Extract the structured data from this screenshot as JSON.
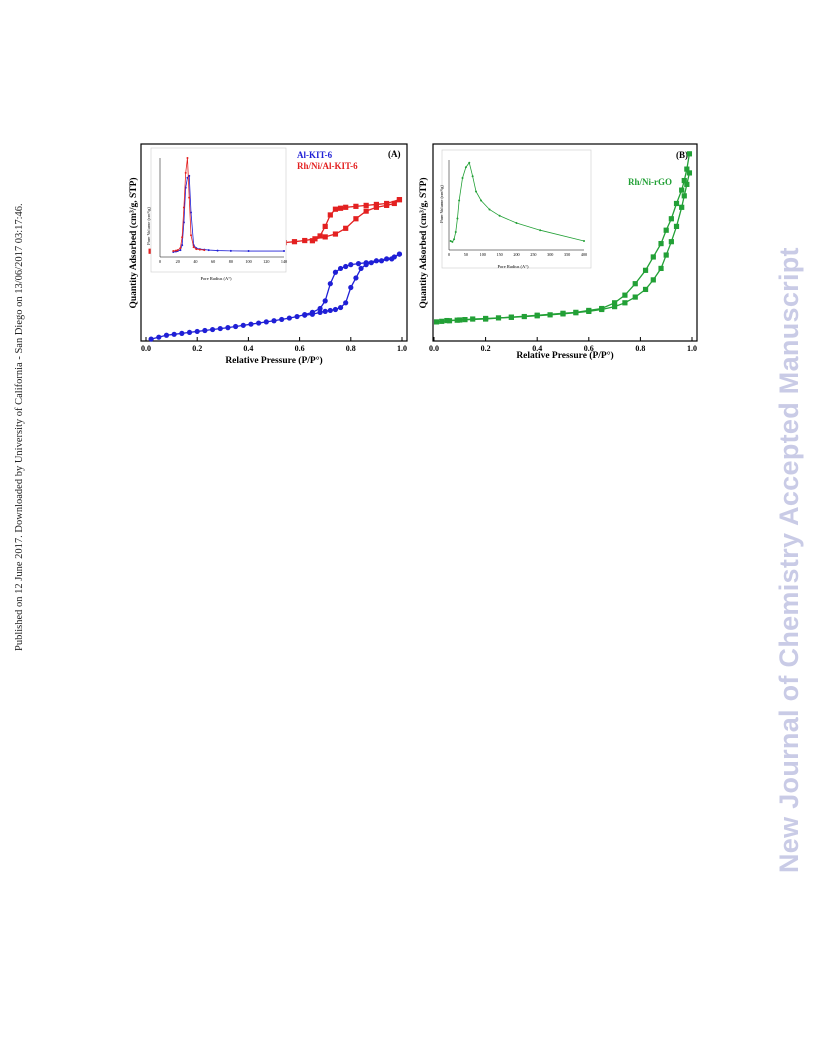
{
  "side_note": "Published on 12 June 2017. Downloaded by University of California - San Diego on 13/06/2017 03:17:46.",
  "watermark": "New Journal of Chemistry Accepted Manuscript",
  "chart_data": [
    {
      "type": "line",
      "panel_label": "(A)",
      "xlabel": "Relative Pressure (P/P°)",
      "ylabel": "Quantity Adsorbed (cm³/g, STP)",
      "xlim": [
        0.0,
        1.0
      ],
      "ylim": [
        0,
        100
      ],
      "y_ticks_labeled": false,
      "xticks": [
        "0.0",
        "0.2",
        "0.4",
        "0.6",
        "0.8",
        "1.0"
      ],
      "grid": false,
      "legend_position": "top-right",
      "series": [
        {
          "name": "Al-KIT-6",
          "color": "#1f1fd6",
          "marker": "circle",
          "x": [
            0.02,
            0.05,
            0.08,
            0.11,
            0.14,
            0.17,
            0.2,
            0.23,
            0.26,
            0.29,
            0.32,
            0.35,
            0.38,
            0.41,
            0.44,
            0.47,
            0.5,
            0.53,
            0.56,
            0.59,
            0.62,
            0.65,
            0.68,
            0.7,
            0.72,
            0.74,
            0.76,
            0.78,
            0.8,
            0.83,
            0.86,
            0.9,
            0.94,
            0.97,
            0.99
          ],
          "y": [
            1,
            2,
            3,
            3.5,
            4,
            4.5,
            5,
            5.5,
            6,
            6.5,
            7,
            7.6,
            8.2,
            8.8,
            9.4,
            10,
            10.6,
            11.3,
            12,
            12.8,
            13.8,
            15,
            17,
            21,
            30,
            36,
            38,
            39,
            40,
            40.5,
            41,
            42,
            43,
            44,
            45.5
          ]
        },
        {
          "name": "Al-KIT-6 desorption",
          "color": "#1f1fd6",
          "marker": "circle",
          "x": [
            0.99,
            0.96,
            0.92,
            0.88,
            0.86,
            0.84,
            0.82,
            0.8,
            0.78,
            0.76,
            0.74,
            0.72,
            0.7,
            0.68,
            0.65,
            0.62
          ],
          "y": [
            45.5,
            43,
            42,
            41,
            40,
            38,
            33,
            28,
            20,
            17.5,
            16.5,
            16,
            15.5,
            15,
            14,
            13.5
          ]
        },
        {
          "name": "Rh/Ni/Al-KIT-6",
          "color": "#e32020",
          "marker": "square",
          "x": [
            0.02,
            0.06,
            0.1,
            0.14,
            0.18,
            0.22,
            0.26,
            0.3,
            0.34,
            0.38,
            0.42,
            0.46,
            0.5,
            0.54,
            0.58,
            0.62,
            0.66,
            0.7,
            0.74,
            0.78,
            0.82,
            0.86,
            0.9,
            0.94,
            0.97,
            0.99
          ],
          "y": [
            47,
            47.3,
            47.6,
            47.9,
            48.2,
            48.5,
            48.8,
            49.1,
            49.5,
            49.9,
            50.3,
            50.7,
            51.1,
            51.5,
            52,
            52.6,
            53.5,
            54.5,
            56,
            59,
            64,
            68,
            70,
            71,
            72,
            74
          ]
        },
        {
          "name": "Rh/Ni/Al-KIT-6 desorption",
          "color": "#e32020",
          "marker": "square",
          "x": [
            0.99,
            0.94,
            0.9,
            0.86,
            0.82,
            0.78,
            0.76,
            0.74,
            0.72,
            0.7,
            0.68,
            0.65
          ],
          "y": [
            74,
            72,
            71.5,
            71,
            70.5,
            70,
            69.5,
            69,
            66,
            60,
            55,
            52.5
          ]
        }
      ],
      "inset": {
        "type": "line",
        "xlabel": "Pore Radius (A°)",
        "ylabel": "Pore Volume (cm³/g)",
        "xlim": [
          0,
          140
        ],
        "xticks": [
          "0",
          "20",
          "40",
          "60",
          "80",
          "100",
          "120",
          "140"
        ],
        "series": [
          {
            "name": "Al-KIT-6",
            "color": "#1f1fd6",
            "x": [
              15,
              18,
              20,
              23,
              25,
              27,
              29,
              31,
              33,
              35,
              38,
              41,
              45,
              50,
              55,
              65,
              80,
              100,
              140
            ],
            "y": [
              5,
              5.5,
              6,
              7,
              12,
              35,
              70,
              80,
              82,
              45,
              12,
              9,
              8,
              7.5,
              7,
              6.5,
              6.2,
              6,
              6
            ]
          },
          {
            "name": "Rh/Ni/Al-KIT-6",
            "color": "#e32020",
            "x": [
              15,
              18,
              20,
              23,
              25,
              27,
              29,
              31,
              33,
              35,
              38,
              41,
              45,
              50
            ],
            "y": [
              6,
              6.5,
              7,
              9,
              20,
              50,
              85,
              100,
              60,
              22,
              10,
              8,
              7.5,
              7
            ]
          }
        ]
      }
    },
    {
      "type": "line",
      "panel_label": "(B)",
      "xlabel": "Relative Pressure (P/P°)",
      "ylabel": "Quantity Adsorbed (cm³/g, STP)",
      "xlim": [
        0.0,
        1.0
      ],
      "ylim": [
        0,
        100
      ],
      "y_ticks_labeled": false,
      "xticks": [
        "0.0",
        "0.2",
        "0.4",
        "0.6",
        "0.8",
        "1.0"
      ],
      "grid": false,
      "legend_position": "top-right",
      "series": [
        {
          "name": "Rh/Ni-rGO",
          "color": "#22a036",
          "marker": "square",
          "x": [
            0.01,
            0.03,
            0.06,
            0.09,
            0.12,
            0.15,
            0.2,
            0.25,
            0.3,
            0.35,
            0.4,
            0.45,
            0.5,
            0.55,
            0.6,
            0.65,
            0.7,
            0.74,
            0.78,
            0.82,
            0.85,
            0.88,
            0.9,
            0.92,
            0.94,
            0.96,
            0.97,
            0.98,
            0.99
          ],
          "y": [
            10,
            10.3,
            10.6,
            10.9,
            11.2,
            11.5,
            11.8,
            12.1,
            12.4,
            12.8,
            13.2,
            13.7,
            14.2,
            14.8,
            15.5,
            16.5,
            18,
            20,
            23,
            27,
            32,
            38,
            45,
            52,
            60,
            70,
            76,
            82,
            88
          ]
        },
        {
          "name": "Rh/Ni-rGO desorption",
          "color": "#22a036",
          "marker": "square",
          "x": [
            0.99,
            0.98,
            0.97,
            0.96,
            0.94,
            0.92,
            0.9,
            0.88,
            0.85,
            0.82,
            0.78,
            0.74,
            0.7,
            0.65,
            0.6,
            0.55,
            0.5,
            0.4,
            0.3,
            0.2,
            0.1,
            0.05
          ],
          "y": [
            98,
            90,
            84,
            79,
            72,
            64,
            58,
            51,
            44,
            37,
            30,
            24,
            20,
            17,
            16,
            15,
            14.5,
            13.5,
            12.5,
            11.5,
            11,
            10.7
          ]
        }
      ],
      "inset": {
        "type": "line",
        "xlabel": "Pore Radius (A°)",
        "ylabel": "Pore Volume (cm³/g)",
        "xlim": [
          0,
          400
        ],
        "xticks": [
          "0",
          "50",
          "100",
          "150",
          "200",
          "250",
          "300",
          "350",
          "400"
        ],
        "series": [
          {
            "name": "Rh/Ni-rGO",
            "color": "#22a036",
            "x": [
              5,
              10,
              15,
              20,
              25,
              30,
              40,
              50,
              60,
              70,
              80,
              95,
              120,
              150,
              200,
              270,
              400
            ],
            "y": [
              10,
              9,
              12,
              20,
              35,
              55,
              80,
              92,
              97,
              82,
              65,
              55,
              45,
              38,
              30,
              22,
              10
            ]
          }
        ]
      }
    }
  ]
}
